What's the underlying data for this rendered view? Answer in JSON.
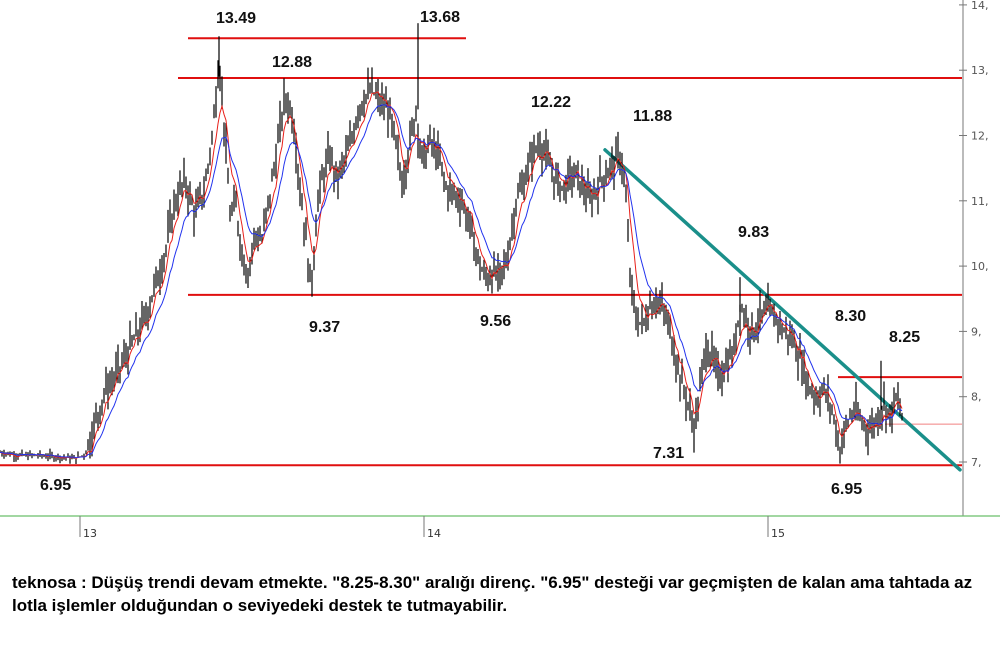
{
  "chart_data": {
    "type": "candlestick",
    "symbol": "teknosa",
    "y_ticks": [
      "7,",
      "8,",
      "9,",
      "10,",
      "11,",
      "12,",
      "13,",
      "14,"
    ],
    "x_ticks": [
      "13",
      "14",
      "15"
    ],
    "ylim": [
      6.5,
      14.3
    ],
    "grid": false,
    "price_path": [
      [
        0,
        7.15
      ],
      [
        20,
        7.1
      ],
      [
        40,
        7.1
      ],
      [
        60,
        7.08
      ],
      [
        75,
        7.05
      ],
      [
        85,
        7.12
      ],
      [
        95,
        7.6
      ],
      [
        105,
        8.1
      ],
      [
        115,
        8.3
      ],
      [
        125,
        8.6
      ],
      [
        135,
        8.9
      ],
      [
        145,
        9.2
      ],
      [
        155,
        9.7
      ],
      [
        165,
        10.2
      ],
      [
        175,
        11.0
      ],
      [
        185,
        11.3
      ],
      [
        195,
        10.8
      ],
      [
        205,
        11.2
      ],
      [
        213,
        12.1
      ],
      [
        219,
        13.2
      ],
      [
        224,
        12.2
      ],
      [
        230,
        10.8
      ],
      [
        236,
        10.9
      ],
      [
        242,
        10.2
      ],
      [
        248,
        9.9
      ],
      [
        255,
        10.5
      ],
      [
        262,
        10.4
      ],
      [
        270,
        11.1
      ],
      [
        278,
        11.9
      ],
      [
        285,
        12.6
      ],
      [
        293,
        12.3
      ],
      [
        300,
        11.2
      ],
      [
        306,
        10.4
      ],
      [
        311,
        9.6
      ],
      [
        317,
        10.9
      ],
      [
        323,
        11.4
      ],
      [
        330,
        11.7
      ],
      [
        337,
        11.3
      ],
      [
        344,
        11.6
      ],
      [
        351,
        11.9
      ],
      [
        358,
        12.4
      ],
      [
        365,
        12.6
      ],
      [
        372,
        12.7
      ],
      [
        380,
        12.5
      ],
      [
        388,
        12.4
      ],
      [
        395,
        11.9
      ],
      [
        402,
        11.3
      ],
      [
        409,
        11.8
      ],
      [
        416,
        12.4
      ],
      [
        422,
        11.6
      ],
      [
        430,
        11.9
      ],
      [
        438,
        11.7
      ],
      [
        446,
        11.2
      ],
      [
        454,
        11.1
      ],
      [
        462,
        11.0
      ],
      [
        470,
        10.6
      ],
      [
        478,
        10.1
      ],
      [
        485,
        9.8
      ],
      [
        492,
        9.9
      ],
      [
        500,
        9.8
      ],
      [
        508,
        10.2
      ],
      [
        516,
        11.0
      ],
      [
        524,
        11.3
      ],
      [
        532,
        11.7
      ],
      [
        540,
        11.9
      ],
      [
        548,
        11.6
      ],
      [
        556,
        11.3
      ],
      [
        564,
        11.2
      ],
      [
        572,
        11.4
      ],
      [
        580,
        11.3
      ],
      [
        590,
        11.0
      ],
      [
        600,
        11.3
      ],
      [
        610,
        11.5
      ],
      [
        620,
        11.7
      ],
      [
        625,
        11.3
      ],
      [
        630,
        9.8
      ],
      [
        636,
        9.2
      ],
      [
        643,
        9.1
      ],
      [
        650,
        9.4
      ],
      [
        657,
        9.5
      ],
      [
        664,
        9.3
      ],
      [
        672,
        8.9
      ],
      [
        680,
        8.3
      ],
      [
        688,
        7.9
      ],
      [
        694,
        7.5
      ],
      [
        700,
        8.1
      ],
      [
        706,
        8.8
      ],
      [
        712,
        8.6
      ],
      [
        718,
        8.3
      ],
      [
        726,
        8.5
      ],
      [
        734,
        8.7
      ],
      [
        740,
        9.4
      ],
      [
        746,
        9.2
      ],
      [
        752,
        9.0
      ],
      [
        760,
        9.2
      ],
      [
        768,
        9.3
      ],
      [
        776,
        9.2
      ],
      [
        784,
        9.0
      ],
      [
        792,
        8.9
      ],
      [
        800,
        8.6
      ],
      [
        808,
        8.2
      ],
      [
        816,
        8.0
      ],
      [
        824,
        8.1
      ],
      [
        832,
        7.8
      ],
      [
        840,
        7.2
      ],
      [
        847,
        7.6
      ],
      [
        854,
        7.8
      ],
      [
        862,
        7.6
      ],
      [
        870,
        7.5
      ],
      [
        878,
        7.7
      ],
      [
        884,
        7.9
      ],
      [
        890,
        7.7
      ],
      [
        897,
        8.0
      ],
      [
        903,
        7.6
      ]
    ],
    "levels": [
      {
        "value": 13.49,
        "label": "13.49"
      },
      {
        "value": 12.88,
        "label": "12.88"
      },
      {
        "value": 9.56,
        "label": "9.56"
      },
      {
        "value": 8.3,
        "label": "8.30"
      },
      {
        "value": 6.95,
        "label": "6.95"
      }
    ],
    "annotations": [
      "13.49",
      "13.68",
      "12.88",
      "12.22",
      "11.88",
      "9.83",
      "9.37",
      "9.56",
      "8.30",
      "8.25",
      "7.31",
      "6.95",
      "6.95"
    ],
    "trendline": {
      "from": [
        605,
        11.78
      ],
      "to": [
        960,
        6.88
      ]
    },
    "colors": {
      "price": "#000000",
      "ma_fast": "#e8201a",
      "ma_slow": "#2233ee",
      "levels": "#e00f0f",
      "trend": "#1a8f8a",
      "axis": "#6bbf6b"
    }
  },
  "commentary": "teknosa : Düşüş trendi devam etmekte. \"8.25-8.30\" aralığı direnç. \"6.95\" desteği var geçmişten de kalan ama tahtada az lotla işlemler olduğundan o seviyedeki destek te tutmayabilir."
}
